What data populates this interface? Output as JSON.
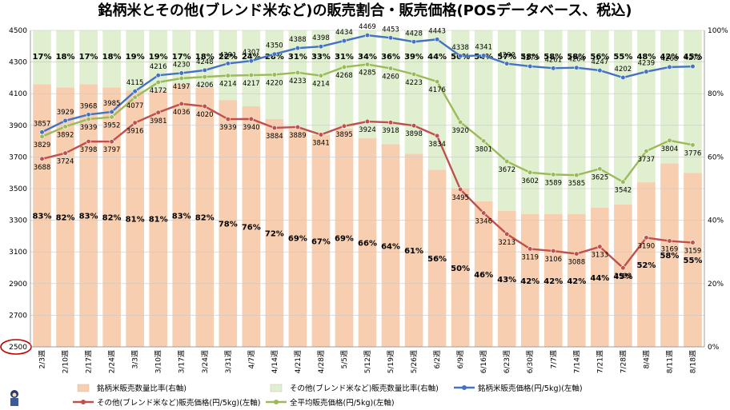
{
  "title": "銘柄米とその他(ブレンド米など)の販売割合・販売価格(POSデータベース、税込)",
  "chart_data": {
    "type": "bar",
    "categories": [
      "2/3週",
      "2/10週",
      "2/17週",
      "2/24週",
      "3/3週",
      "3/10週",
      "3/17週",
      "3/24週",
      "3/31週",
      "4/7週",
      "4/14週",
      "4/21週",
      "4/28週",
      "5/5週",
      "5/12週",
      "5/19週",
      "5/26週",
      "6/2週",
      "6/9週",
      "6/16週",
      "6/23週",
      "6/30週",
      "7/7週",
      "7/14週",
      "7/21週",
      "7/28週",
      "8/4週",
      "8/11週",
      "8/18週"
    ],
    "left_axis": {
      "min": 2500,
      "max": 4500,
      "ticks": [
        2500,
        2700,
        2900,
        3100,
        3300,
        3500,
        3700,
        3900,
        4100,
        4300,
        4500
      ]
    },
    "right_axis": {
      "min": 0,
      "max": 100,
      "ticks": [
        "0%",
        "20%",
        "40%",
        "60%",
        "80%",
        "100%"
      ]
    },
    "grid": true,
    "legend_position": "bottom",
    "circled_tick": "2500",
    "bar_series": [
      {
        "name": "銘柄米販売数量比率(右軸)",
        "color": "#f7cfb0",
        "values": [
          83,
          82,
          83,
          82,
          81,
          81,
          83,
          82,
          78,
          76,
          72,
          69,
          67,
          69,
          66,
          64,
          61,
          56,
          50,
          46,
          43,
          42,
          42,
          42,
          44,
          45,
          52,
          58,
          55
        ]
      },
      {
        "name": "その他(ブレンド米など)販売数量比率(右軸)",
        "color": "#e0efd0",
        "values": [
          17,
          18,
          17,
          18,
          19,
          19,
          17,
          18,
          22,
          24,
          28,
          31,
          33,
          31,
          34,
          36,
          39,
          44,
          50,
          54,
          57,
          58,
          58,
          58,
          56,
          55,
          48,
          42,
          45
        ]
      }
    ],
    "line_series": [
      {
        "name": "銘柄米販売価格(円/5kg)(左軸)",
        "color": "#4472c4",
        "values": [
          3857,
          3929,
          3968,
          3985,
          4115,
          4216,
          4230,
          4248,
          4291,
          4307,
          4350,
          4388,
          4398,
          4434,
          4469,
          4453,
          4428,
          4443,
          4338,
          4341,
          4290,
          4273,
          4261,
          4264,
          4247,
          4202,
          4239,
          4268,
          4272
        ]
      },
      {
        "name": "その他(ブレンド米など)販売価格(円/5kg)(左軸)",
        "color": "#c0504d",
        "values": [
          3688,
          3724,
          3798,
          3797,
          3916,
          3981,
          4036,
          4020,
          3939,
          3940,
          3884,
          3889,
          3841,
          3895,
          3924,
          3918,
          3898,
          3834,
          3495,
          3346,
          3213,
          3119,
          3106,
          3088,
          3133,
          2999,
          3190,
          3169,
          3159
        ]
      },
      {
        "name": "全平均販売価格(円/5kg)(左軸)",
        "color": "#9bbb59",
        "values": [
          3829,
          3892,
          3939,
          3952,
          4077,
          4172,
          4197,
          4206,
          4214,
          4217,
          4220,
          4233,
          4214,
          4268,
          4285,
          4260,
          4223,
          4176,
          3920,
          3801,
          3672,
          3602,
          3589,
          3585,
          3625,
          3542,
          3737,
          3804,
          3776
        ]
      }
    ]
  }
}
